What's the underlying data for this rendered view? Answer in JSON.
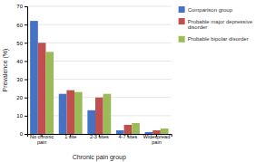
{
  "chart_data": {
    "type": "bar",
    "categories": [
      "No chronic\npain",
      "1 site",
      "2-3 sites",
      "4-7 sites",
      "Widespread\npain"
    ],
    "series": [
      {
        "name": "Comparison group",
        "color": "#4472C4",
        "values": [
          62,
          22,
          13,
          2,
          1
        ]
      },
      {
        "name": "Probable major depressive\ndisorder",
        "color": "#C0504D",
        "values": [
          50,
          24,
          20,
          5,
          2
        ]
      },
      {
        "name": "Probable bipolar disorder",
        "color": "#9BBB59",
        "values": [
          45,
          23,
          22,
          6,
          3
        ]
      }
    ],
    "xlabel": "Chronic pain group",
    "ylabel": "Prevalence (%)",
    "ylim": [
      0,
      70
    ],
    "yticks": [
      0,
      10,
      20,
      30,
      40,
      50,
      60,
      70
    ],
    "grid": true,
    "legend": "right"
  }
}
